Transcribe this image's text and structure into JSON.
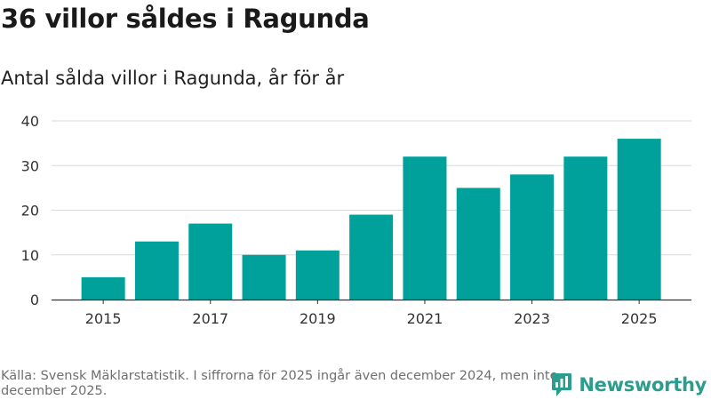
{
  "title": "36 villor såldes i Ragunda",
  "subtitle": "Antal sålda villor i Ragunda, år för år",
  "source": "Källa: Svensk Mäklarstatistik. I siffrorna för 2025 ingår även december 2024, men inte december 2025.",
  "brand": {
    "name": "Newsworthy",
    "icon": "newsworthy-logo-icon",
    "color": "#2a9d8f"
  },
  "colors": {
    "bar": "#00a19a",
    "grid": "#d9d9d9",
    "axis": "#333333"
  },
  "chart_data": {
    "type": "bar",
    "categories": [
      "2015",
      "2016",
      "2017",
      "2018",
      "2019",
      "2020",
      "2021",
      "2022",
      "2023",
      "2024",
      "2025"
    ],
    "values": [
      5,
      13,
      17,
      10,
      11,
      19,
      32,
      25,
      28,
      32,
      36
    ],
    "x_tick_labels": [
      "2015",
      "2017",
      "2019",
      "2021",
      "2023",
      "2025"
    ],
    "y_ticks": [
      0,
      10,
      20,
      30,
      40
    ],
    "ylim": [
      0,
      40
    ],
    "grid": true
  }
}
